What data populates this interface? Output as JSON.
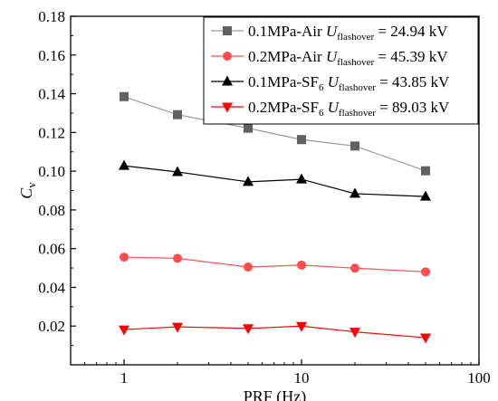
{
  "chart_data": {
    "type": "line",
    "title": "",
    "xlabel": "PRF (Hz)",
    "ylabel": "C",
    "ylabel_subscript": "v",
    "x_scale": "log",
    "xlim": [
      0.5,
      100
    ],
    "ylim": [
      0.0,
      0.18
    ],
    "x_ticks": [
      1,
      10,
      100
    ],
    "x_tick_labels": [
      "1",
      "10",
      "100"
    ],
    "y_ticks": [
      0.02,
      0.04,
      0.06,
      0.08,
      0.1,
      0.12,
      0.14,
      0.16,
      0.18
    ],
    "y_tick_labels": [
      "0.02",
      "0.04",
      "0.06",
      "0.08",
      "0.10",
      "0.12",
      "0.14",
      "0.16",
      "0.18"
    ],
    "grid": false,
    "legend_position": "top-right",
    "x": [
      1,
      2,
      5,
      10,
      20,
      50
    ],
    "series": [
      {
        "name": "0.1MPa-Air",
        "legend_label": {
          "prefix": "0.1MPa-Air ",
          "var": "U",
          "sub": "flashover",
          "suffix": " = 24.94 kV"
        },
        "values": [
          0.1385,
          0.1292,
          0.1222,
          0.1163,
          0.113,
          0.1002
        ],
        "line_color": "#9a9a9a",
        "marker_color": "#606060",
        "marker": "square"
      },
      {
        "name": "0.2MPa-Air",
        "legend_label": {
          "prefix": "0.2MPa-Air ",
          "var": "U",
          "sub": "flashover",
          "suffix": " = 45.39 kV"
        },
        "values": [
          0.0556,
          0.055,
          0.0505,
          0.0515,
          0.0499,
          0.048
        ],
        "line_color": "#ff5050",
        "marker_color": "#ff4c4c",
        "marker": "circle"
      },
      {
        "name": "0.1MPa-SF6",
        "legend_label": {
          "prefix": "0.1MPa-SF",
          "prefix_sub": "6",
          "var": " U",
          "sub": "flashover",
          "suffix": " = 43.85 kV"
        },
        "values": [
          0.1028,
          0.0996,
          0.0945,
          0.0958,
          0.0884,
          0.0869
        ],
        "line_color": "#000000",
        "marker_color": "#000000",
        "marker": "triangle-up"
      },
      {
        "name": "0.2MPa-SF6",
        "legend_label": {
          "prefix": "0.2MPa-SF",
          "prefix_sub": "6",
          "var": " U",
          "sub": "flashover",
          "suffix": " = 89.03 kV"
        },
        "values": [
          0.0182,
          0.0196,
          0.0188,
          0.02,
          0.017,
          0.014
        ],
        "line_color": "#ff0000",
        "marker_color": "#ff0000",
        "marker": "triangle-down"
      }
    ]
  }
}
